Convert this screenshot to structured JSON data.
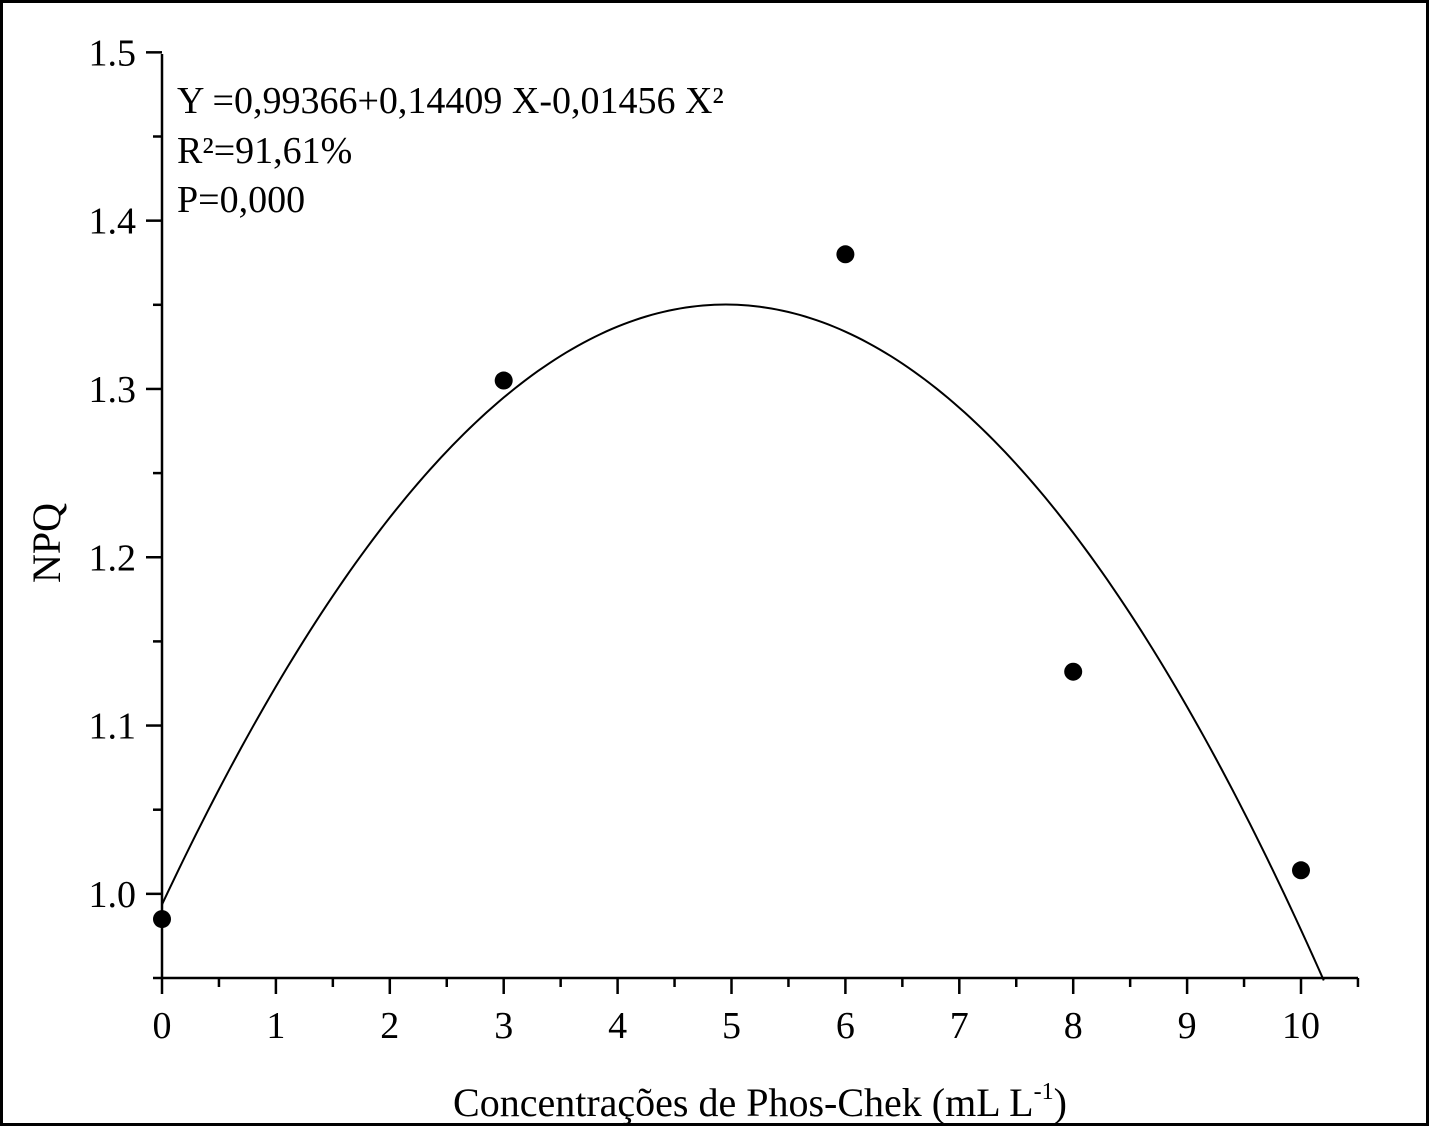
{
  "chart_data": {
    "type": "scatter",
    "title": "",
    "xlabel": "Concentrações de Phos-Chek (mL L",
    "xlabel_superscript": "-1",
    "xlabel_suffix": ")",
    "ylabel": "NPQ",
    "xlim": [
      0,
      10.5
    ],
    "ylim": [
      0.95,
      1.5
    ],
    "x_ticks": [
      0,
      1,
      2,
      3,
      4,
      5,
      6,
      7,
      8,
      9,
      10
    ],
    "x_tick_labels": [
      "0",
      "1",
      "2",
      "3",
      "4",
      "5",
      "6",
      "7",
      "8",
      "9",
      "10"
    ],
    "y_ticks": [
      1.0,
      1.1,
      1.2,
      1.3,
      1.4,
      1.5
    ],
    "y_tick_labels": [
      "1.0",
      "1.1",
      "1.2",
      "1.3",
      "1.4",
      "1.5"
    ],
    "grid": false,
    "legend": "none",
    "series": [
      {
        "kind": "points",
        "x": [
          0,
          3,
          6,
          8,
          10
        ],
        "y": [
          0.985,
          1.305,
          1.38,
          1.132,
          1.014
        ],
        "color": "#000000"
      },
      {
        "kind": "fit",
        "equation_coefficients": [
          0.99366,
          0.14409,
          -0.01456
        ],
        "x_range": [
          0,
          10.2
        ],
        "color": "#000000"
      }
    ],
    "annotations": [
      "Y =0,99366+0,14409 X-0,01456 X²",
      "R²=91,61%",
      "P=0,000"
    ]
  }
}
